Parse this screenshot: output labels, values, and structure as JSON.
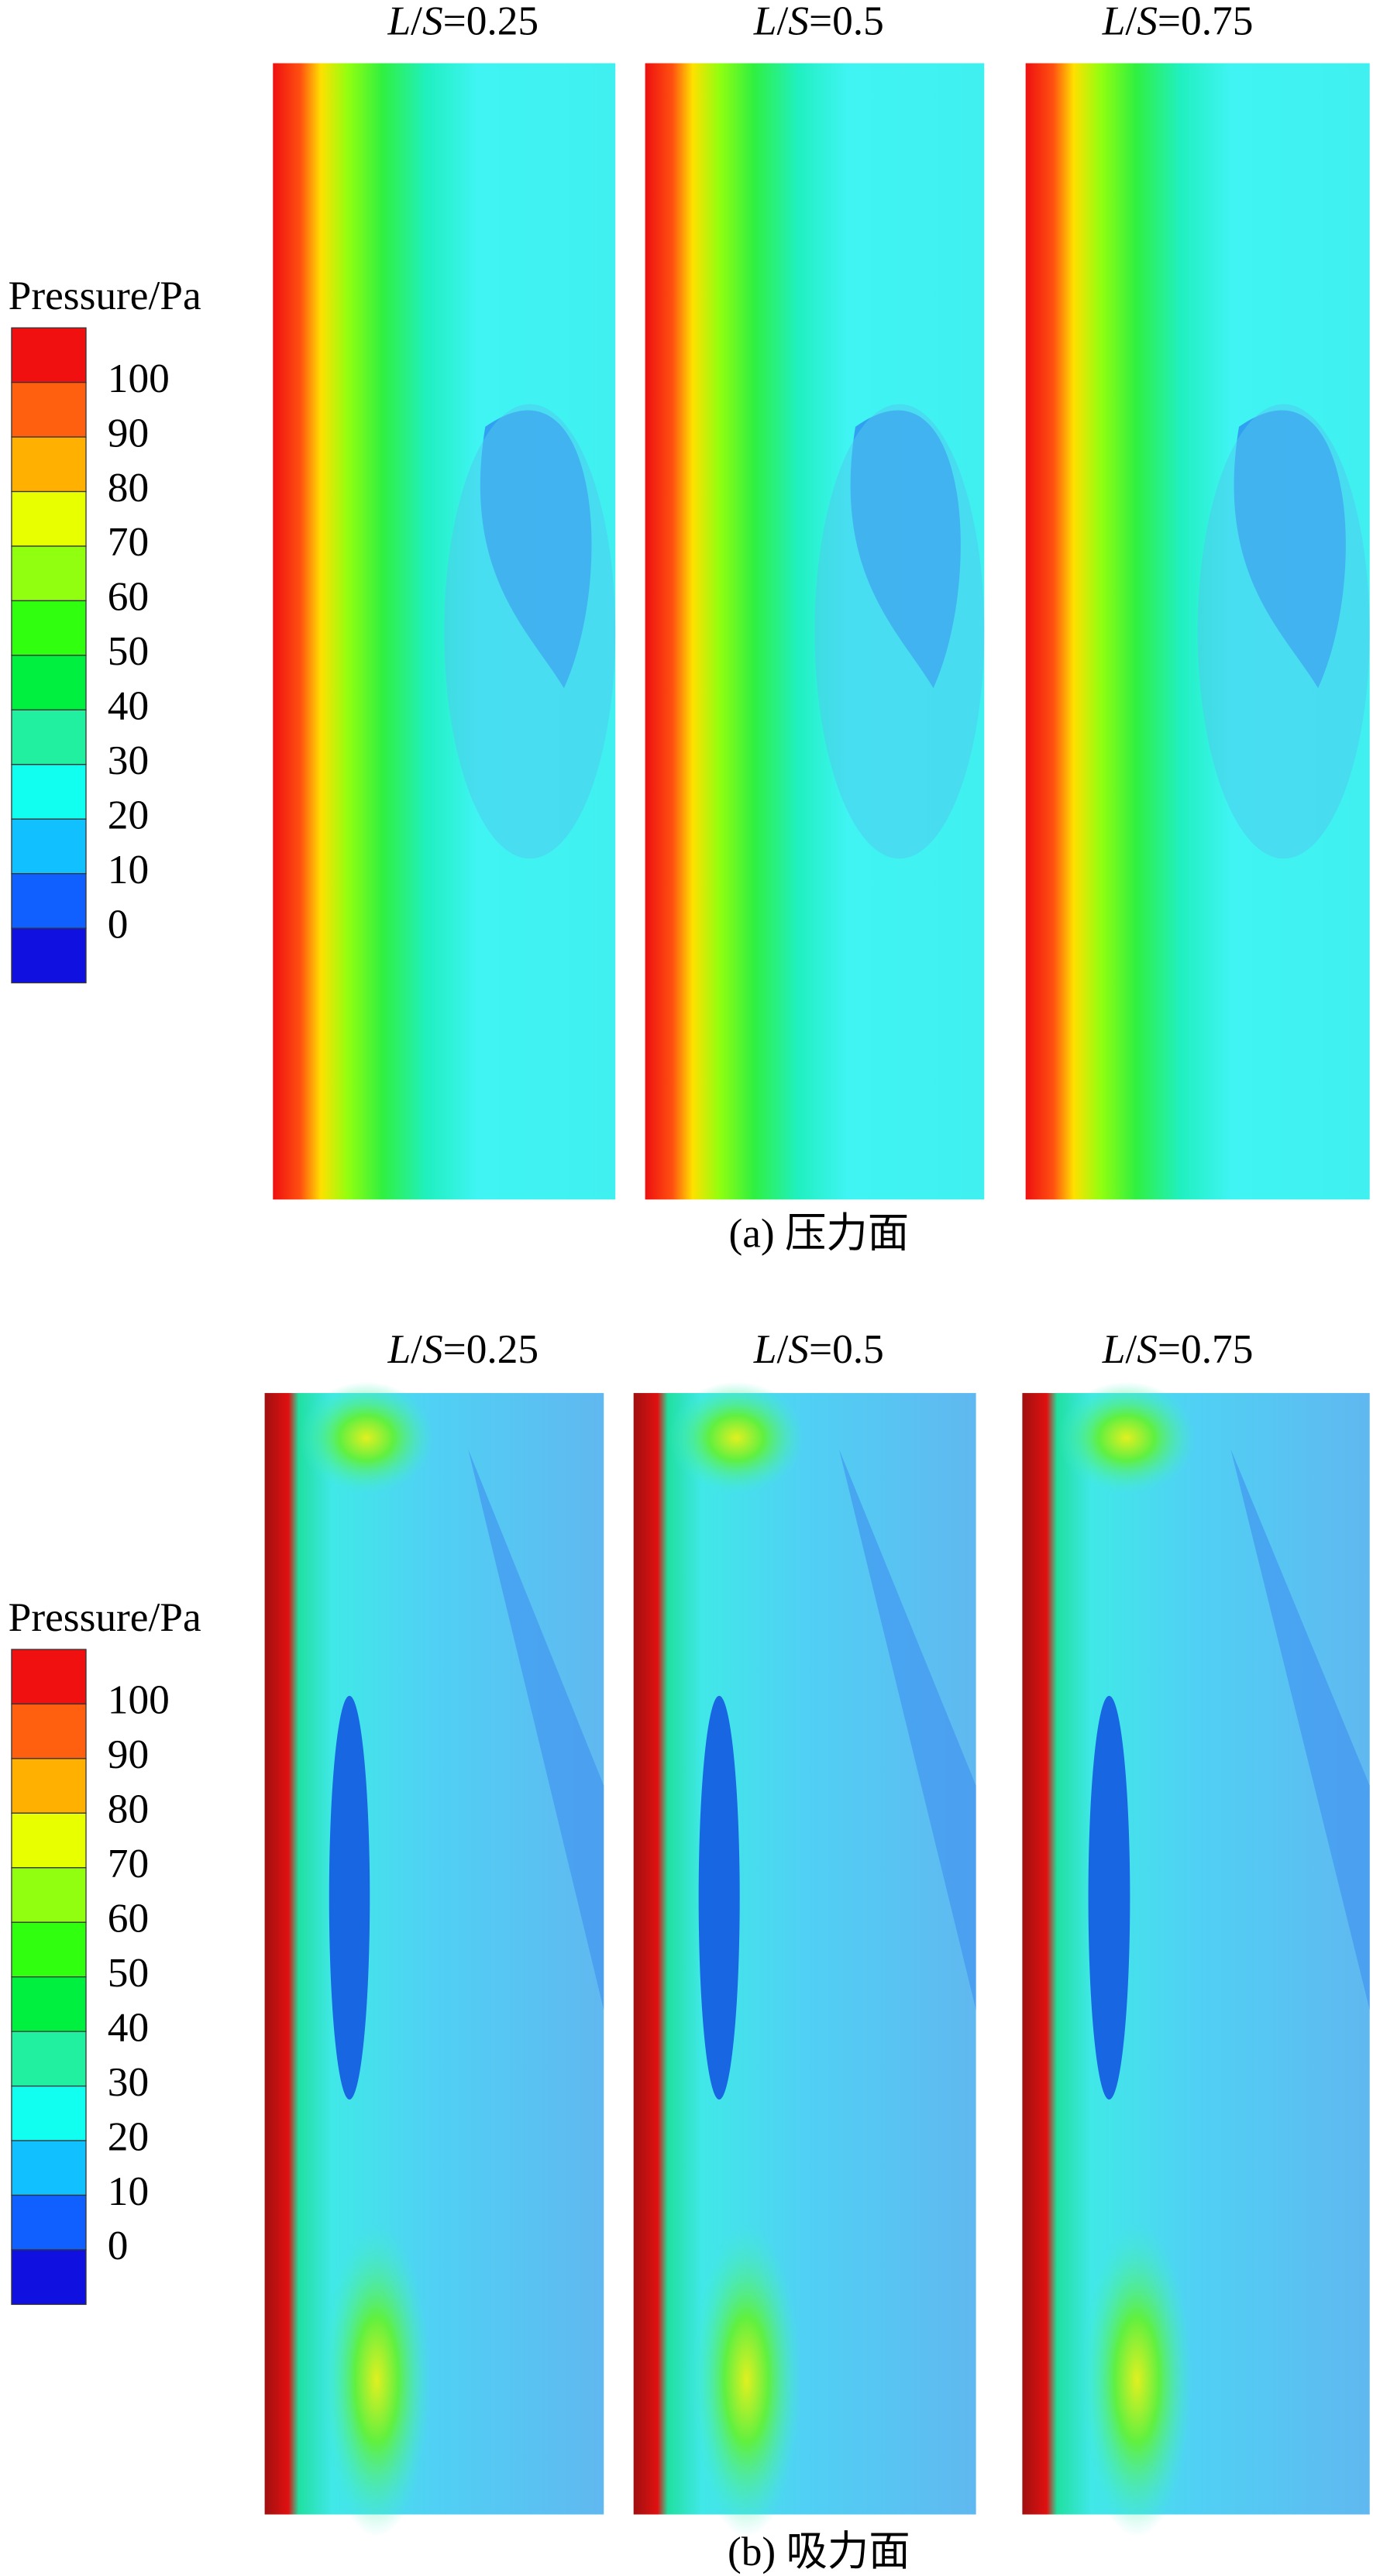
{
  "panels": [
    {
      "caption": "(a) 压力面",
      "legend": {
        "title": "Pressure/Pa",
        "ticks": [
          100,
          90,
          80,
          70,
          60,
          50,
          40,
          30,
          20,
          10,
          0
        ],
        "colors": [
          "#f01010",
          "#ff6010",
          "#ffb000",
          "#e8ff00",
          "#90ff10",
          "#30ff10",
          "#00f040",
          "#20f0a0",
          "#10fff0",
          "#10c0ff",
          "#1060ff",
          "#1010e0"
        ]
      },
      "columns": [
        "L/S=0.25",
        "L/S=0.5",
        "L/S=0.75"
      ]
    },
    {
      "caption": "(b) 吸力面",
      "legend": {
        "title": "Pressure/Pa",
        "ticks": [
          100,
          90,
          80,
          70,
          60,
          50,
          40,
          30,
          20,
          10,
          0
        ],
        "colors": [
          "#f01010",
          "#ff6010",
          "#ffb000",
          "#e8ff00",
          "#90ff10",
          "#30ff10",
          "#00f040",
          "#20f0a0",
          "#10fff0",
          "#10c0ff",
          "#1060ff",
          "#1010e0"
        ]
      },
      "columns": [
        "L/S=0.25",
        "L/S=0.5",
        "L/S=0.75"
      ]
    }
  ]
}
